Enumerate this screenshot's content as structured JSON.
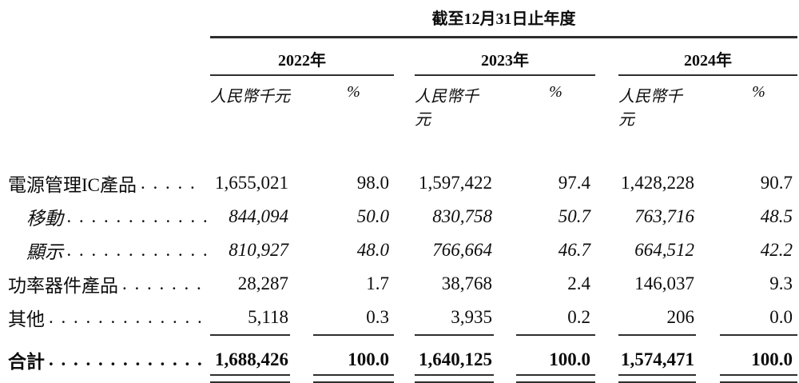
{
  "colors": {
    "text": "#0c0c0c",
    "rule": "#2e2e2e",
    "background": "#ffffff"
  },
  "table": {
    "title": "截至12月31日止年度",
    "columns": {
      "unit_label": "人民幣千元",
      "pct_label": "%"
    },
    "years": [
      {
        "label": "2022年"
      },
      {
        "label": "2023年"
      },
      {
        "label": "2024年"
      }
    ],
    "rows": [
      {
        "label": "電源管理IC產品",
        "dots": ". . . . .",
        "values": [
          "1,655,021",
          "98.0",
          "1,597,422",
          "97.4",
          "1,428,228",
          "90.7"
        ]
      },
      {
        "label": "移動",
        "dots": ". . . . . . . . . . . .",
        "values": [
          "844,094",
          "50.0",
          "830,758",
          "50.7",
          "763,716",
          "48.5"
        ]
      },
      {
        "label": "顯示",
        "dots": ". . . . . . . . . . . .",
        "values": [
          "810,927",
          "48.0",
          "766,664",
          "46.7",
          "664,512",
          "42.2"
        ]
      },
      {
        "label": "功率器件產品",
        "dots": ". . . . . . .",
        "values": [
          "28,287",
          "1.7",
          "38,768",
          "2.4",
          "146,037",
          "9.3"
        ]
      },
      {
        "label": "其他",
        "dots": ". . . . . . . . . . . . . .",
        "values": [
          "5,118",
          "0.3",
          "3,935",
          "0.2",
          "206",
          "0.0"
        ]
      }
    ],
    "total": {
      "label": "合計",
      "dots": ". . . . . . . . . . . . . .",
      "values": [
        "1,688,426",
        "100.0",
        "1,640,125",
        "100.0",
        "1,574,471",
        "100.0"
      ]
    }
  }
}
